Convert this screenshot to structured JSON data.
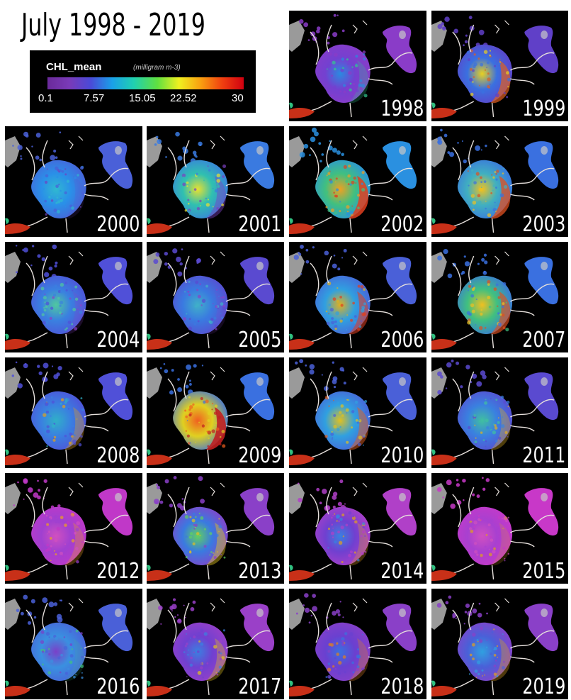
{
  "title": "July 1998 - 2019",
  "legend": {
    "label": "CHL_mean",
    "unit": "(milligram m-3)",
    "ticks": [
      "0.1",
      "7.57",
      "15.05",
      "22.52",
      "30"
    ],
    "colormap": [
      "#6a2a9a",
      "#7a3ab8",
      "#4a4ad8",
      "#1aa0e8",
      "#20d0b0",
      "#60e040",
      "#f0f020",
      "#f8a010",
      "#f04010",
      "#d00010"
    ]
  },
  "panels": [
    {
      "year": "1998",
      "tone": [
        "#8a3cc8",
        "#7440d0",
        "#2a8ae0",
        "#30c890"
      ],
      "hot": 0.25
    },
    {
      "year": "1999",
      "tone": [
        "#6040c8",
        "#3a70e0",
        "#e8d020",
        "#e06020"
      ],
      "hot": 0.7
    },
    {
      "year": "2000",
      "tone": [
        "#4a60d8",
        "#2a90e8",
        "#30b8d0",
        "#7040c0"
      ],
      "hot": 0.15
    },
    {
      "year": "2001",
      "tone": [
        "#3a7ae0",
        "#30c0b0",
        "#e8e030",
        "#7a40c0"
      ],
      "hot": 0.45
    },
    {
      "year": "2002",
      "tone": [
        "#2a90e0",
        "#40c080",
        "#f0a020",
        "#e04020"
      ],
      "hot": 0.85
    },
    {
      "year": "2003",
      "tone": [
        "#3a70e0",
        "#40b0c0",
        "#f0c020",
        "#e05020"
      ],
      "hot": 0.75
    },
    {
      "year": "2004",
      "tone": [
        "#5050d8",
        "#3a80e0",
        "#50c8a0",
        "#8a40c8"
      ],
      "hot": 0.2
    },
    {
      "year": "2005",
      "tone": [
        "#5a4ad0",
        "#3a7ae0",
        "#40b0c8",
        "#8a40c8"
      ],
      "hot": 0.15
    },
    {
      "year": "2006",
      "tone": [
        "#4a60d8",
        "#30a0e0",
        "#e0b020",
        "#e04020"
      ],
      "hot": 0.55
    },
    {
      "year": "2007",
      "tone": [
        "#3a70e0",
        "#40c080",
        "#f0c020",
        "#e05020"
      ],
      "hot": 0.65
    },
    {
      "year": "2008",
      "tone": [
        "#5050d8",
        "#3a80e0",
        "#30b0c8",
        "#e0a020"
      ],
      "hot": 0.35
    },
    {
      "year": "2009",
      "tone": [
        "#3a70e0",
        "#e0d020",
        "#f06020",
        "#c02020"
      ],
      "hot": 0.9
    },
    {
      "year": "2010",
      "tone": [
        "#4a60d8",
        "#30a0e0",
        "#e0c020",
        "#e06020"
      ],
      "hot": 0.5
    },
    {
      "year": "2011",
      "tone": [
        "#5a4ad0",
        "#3a80e0",
        "#40c0a0",
        "#e0b020"
      ],
      "hot": 0.35
    },
    {
      "year": "2012",
      "tone": [
        "#c038c8",
        "#a040d0",
        "#d050c0",
        "#f0a020"
      ],
      "hot": 0.3
    },
    {
      "year": "2013",
      "tone": [
        "#8a40c8",
        "#3a7ae0",
        "#60d060",
        "#e0c020"
      ],
      "hot": 0.45
    },
    {
      "year": "2014",
      "tone": [
        "#b040c8",
        "#7040d0",
        "#3a80e0",
        "#e0a020"
      ],
      "hot": 0.3
    },
    {
      "year": "2015",
      "tone": [
        "#c838c8",
        "#a840d0",
        "#d050c0",
        "#e0a020"
      ],
      "hot": 0.2
    },
    {
      "year": "2016",
      "tone": [
        "#4a60d8",
        "#3a90e0",
        "#7a40c8",
        "#40c080"
      ],
      "hot": 0.15
    },
    {
      "year": "2017",
      "tone": [
        "#9a40c8",
        "#7040d0",
        "#3a80e0",
        "#e0c020"
      ],
      "hot": 0.35
    },
    {
      "year": "2018",
      "tone": [
        "#8a40c8",
        "#6a40d0",
        "#3a70e0",
        "#e08020"
      ],
      "hot": 0.3
    },
    {
      "year": "2019",
      "tone": [
        "#8a40c8",
        "#4a60d8",
        "#30a0e0",
        "#e0a020"
      ],
      "hot": 0.35
    }
  ]
}
